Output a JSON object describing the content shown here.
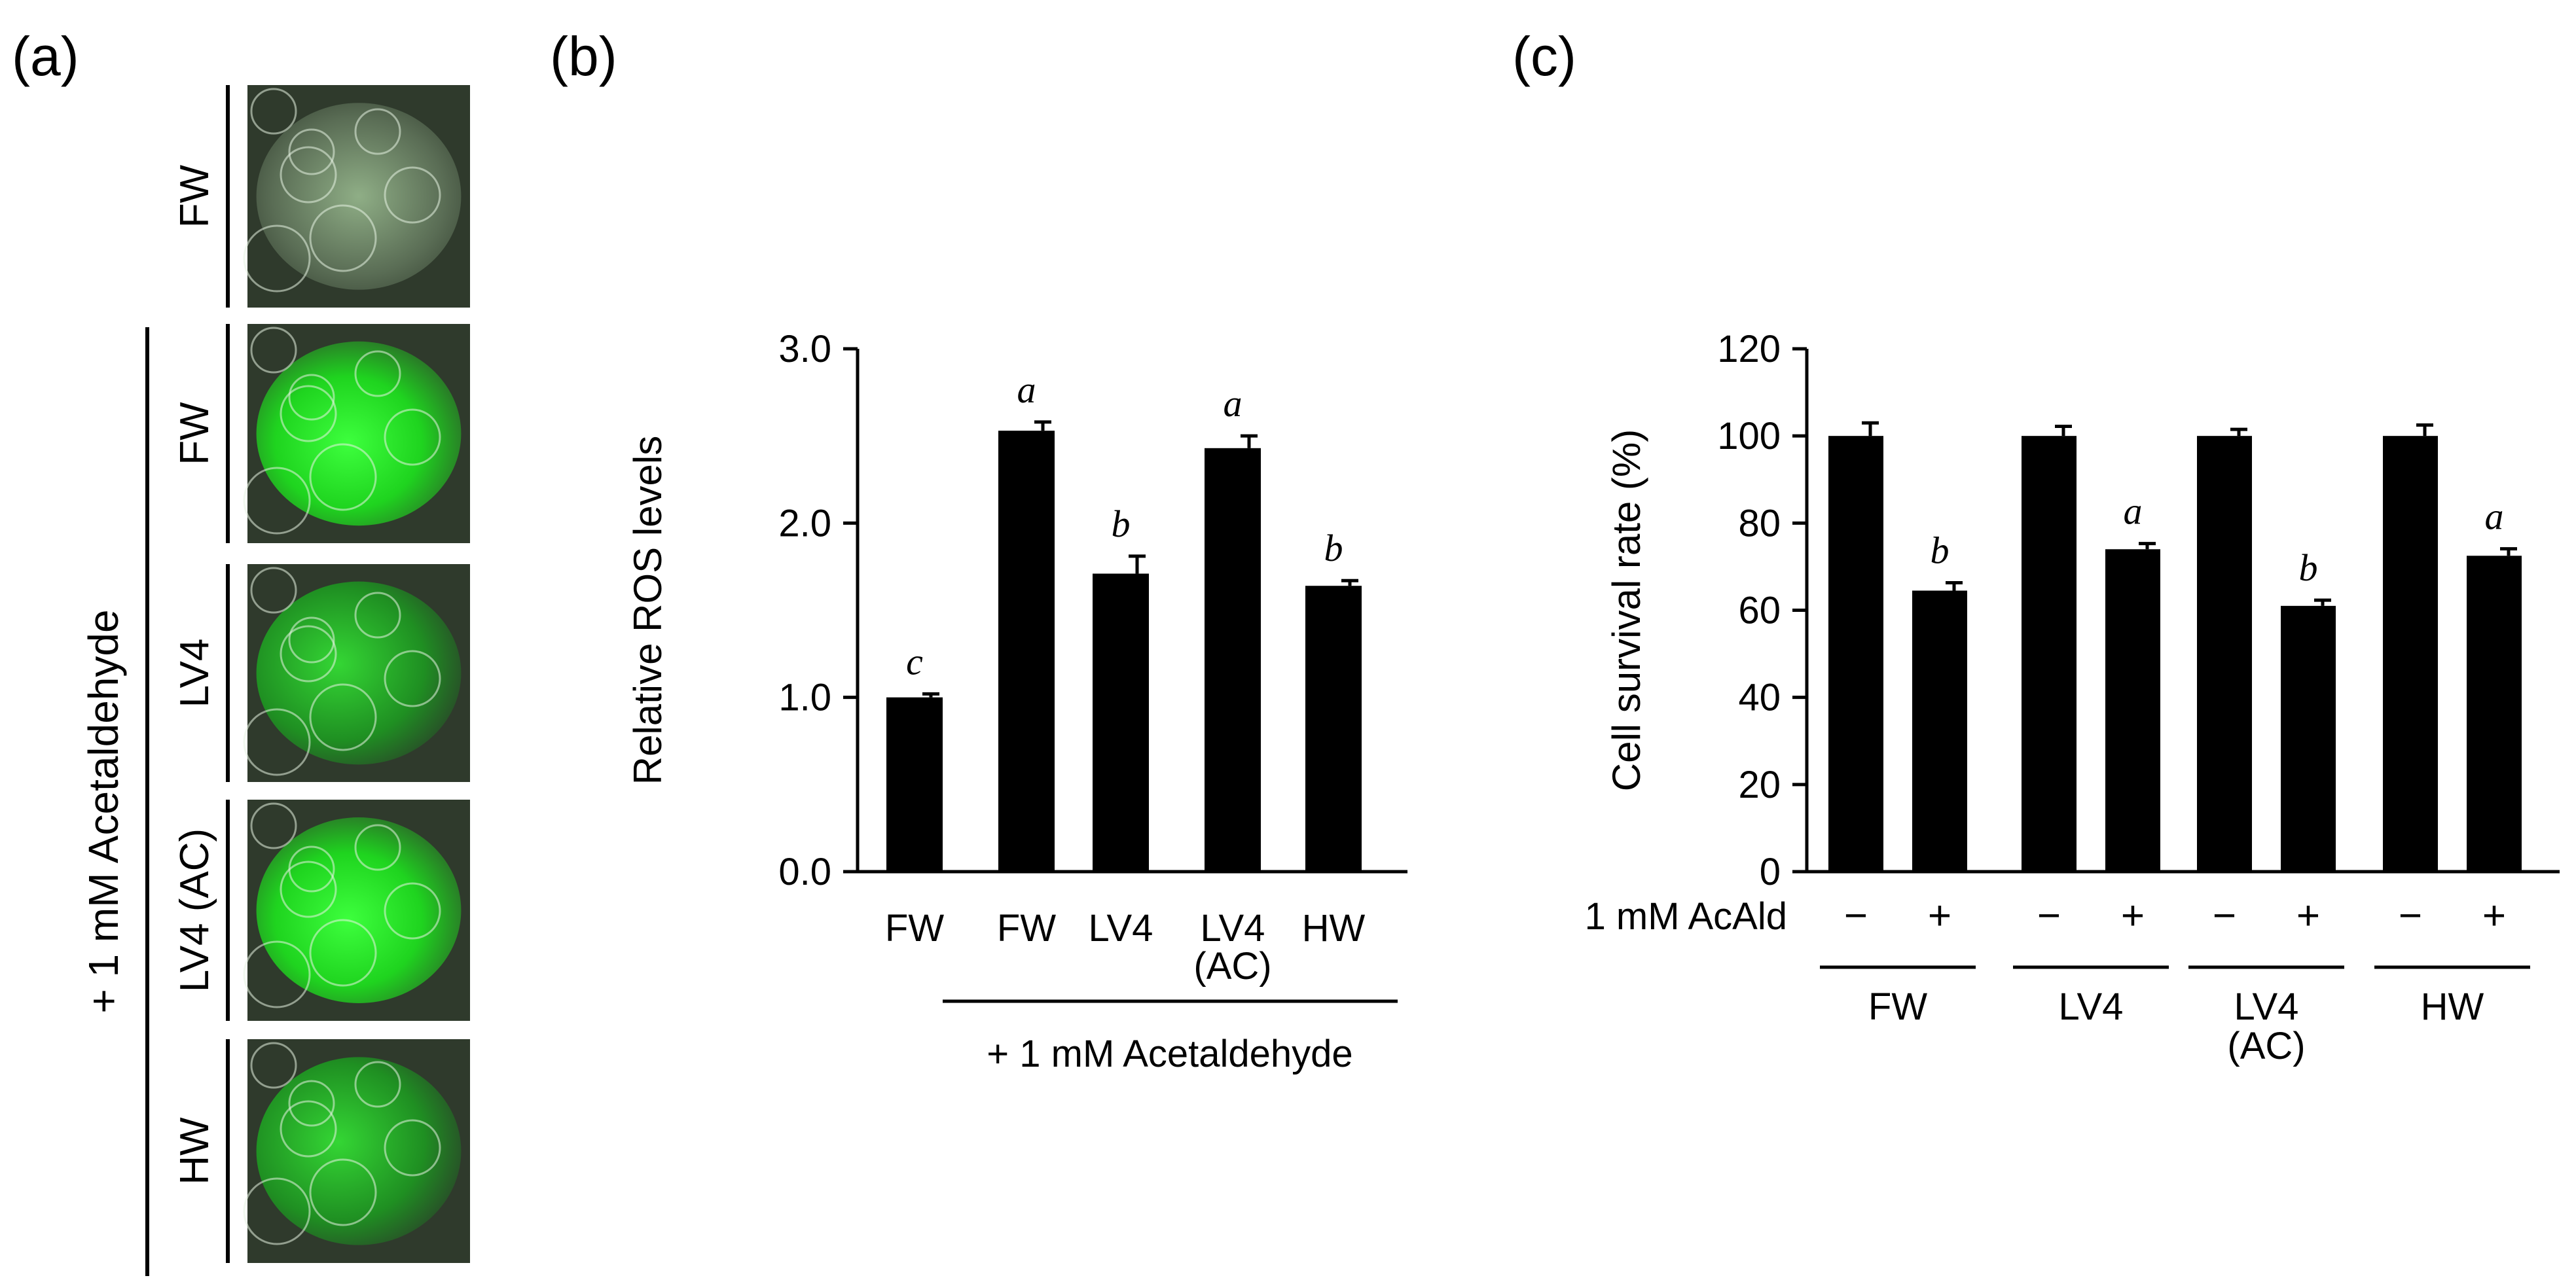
{
  "panels": {
    "a": {
      "label": "(a)",
      "treatment_label": "+ 1 mM Acetaldehyde",
      "images": [
        {
          "label": "FW",
          "intensity": "low"
        },
        {
          "label": "FW",
          "intensity": "high"
        },
        {
          "label": "LV4",
          "intensity": "medium"
        },
        {
          "label": "LV4 (AC)",
          "intensity": "high"
        },
        {
          "label": "HW",
          "intensity": "medium"
        }
      ]
    },
    "b": {
      "label": "(b)",
      "group_label": "+ 1 mM Acetaldehyde"
    },
    "c": {
      "label": "(c)",
      "row_label": "1 mM AcAld"
    }
  },
  "colors": {
    "bar": "#000000",
    "axis": "#000000",
    "fluor_high": "#2ee82e",
    "fluor_low": "#7acb6a",
    "cell_bg": "#2f3a2c"
  },
  "chart_data": [
    {
      "id": "b",
      "type": "bar",
      "ylabel": "Relative ROS levels",
      "ylim": [
        0,
        3
      ],
      "yticks": [
        "0.0",
        "1.0",
        "2.0",
        "3.0"
      ],
      "categories": [
        "FW",
        "FW",
        "LV4",
        "LV4 (AC)",
        "HW"
      ],
      "category_lines": [
        [
          "FW"
        ],
        [
          "FW"
        ],
        [
          "LV4"
        ],
        [
          "LV4",
          "(AC)"
        ],
        [
          "HW"
        ]
      ],
      "values": [
        1.0,
        2.53,
        1.71,
        2.43,
        1.64
      ],
      "errors": [
        0.02,
        0.05,
        0.1,
        0.07,
        0.03
      ],
      "letters": [
        "c",
        "a",
        "b",
        "a",
        "b"
      ]
    },
    {
      "id": "c",
      "type": "bar",
      "ylabel": "Cell survival rate (%)",
      "ylim": [
        0,
        120
      ],
      "yticks": [
        "0",
        "20",
        "40",
        "60",
        "80",
        "100",
        "120"
      ],
      "groups": [
        "FW",
        "LV4",
        "LV4 (AC)",
        "HW"
      ],
      "group_lines": [
        [
          "FW"
        ],
        [
          "LV4"
        ],
        [
          "LV4",
          "(AC)"
        ],
        [
          "HW"
        ]
      ],
      "signs": [
        "−",
        "+",
        "−",
        "+",
        "−",
        "+",
        "−",
        "+"
      ],
      "values": [
        100,
        64.5,
        100,
        74,
        100,
        61,
        100,
        72.5
      ],
      "errors": [
        3,
        1.8,
        2.2,
        1.3,
        1.5,
        1.3,
        2.5,
        1.6
      ],
      "letters": [
        "",
        "b",
        "",
        "a",
        "",
        "b",
        "",
        "a"
      ]
    }
  ]
}
